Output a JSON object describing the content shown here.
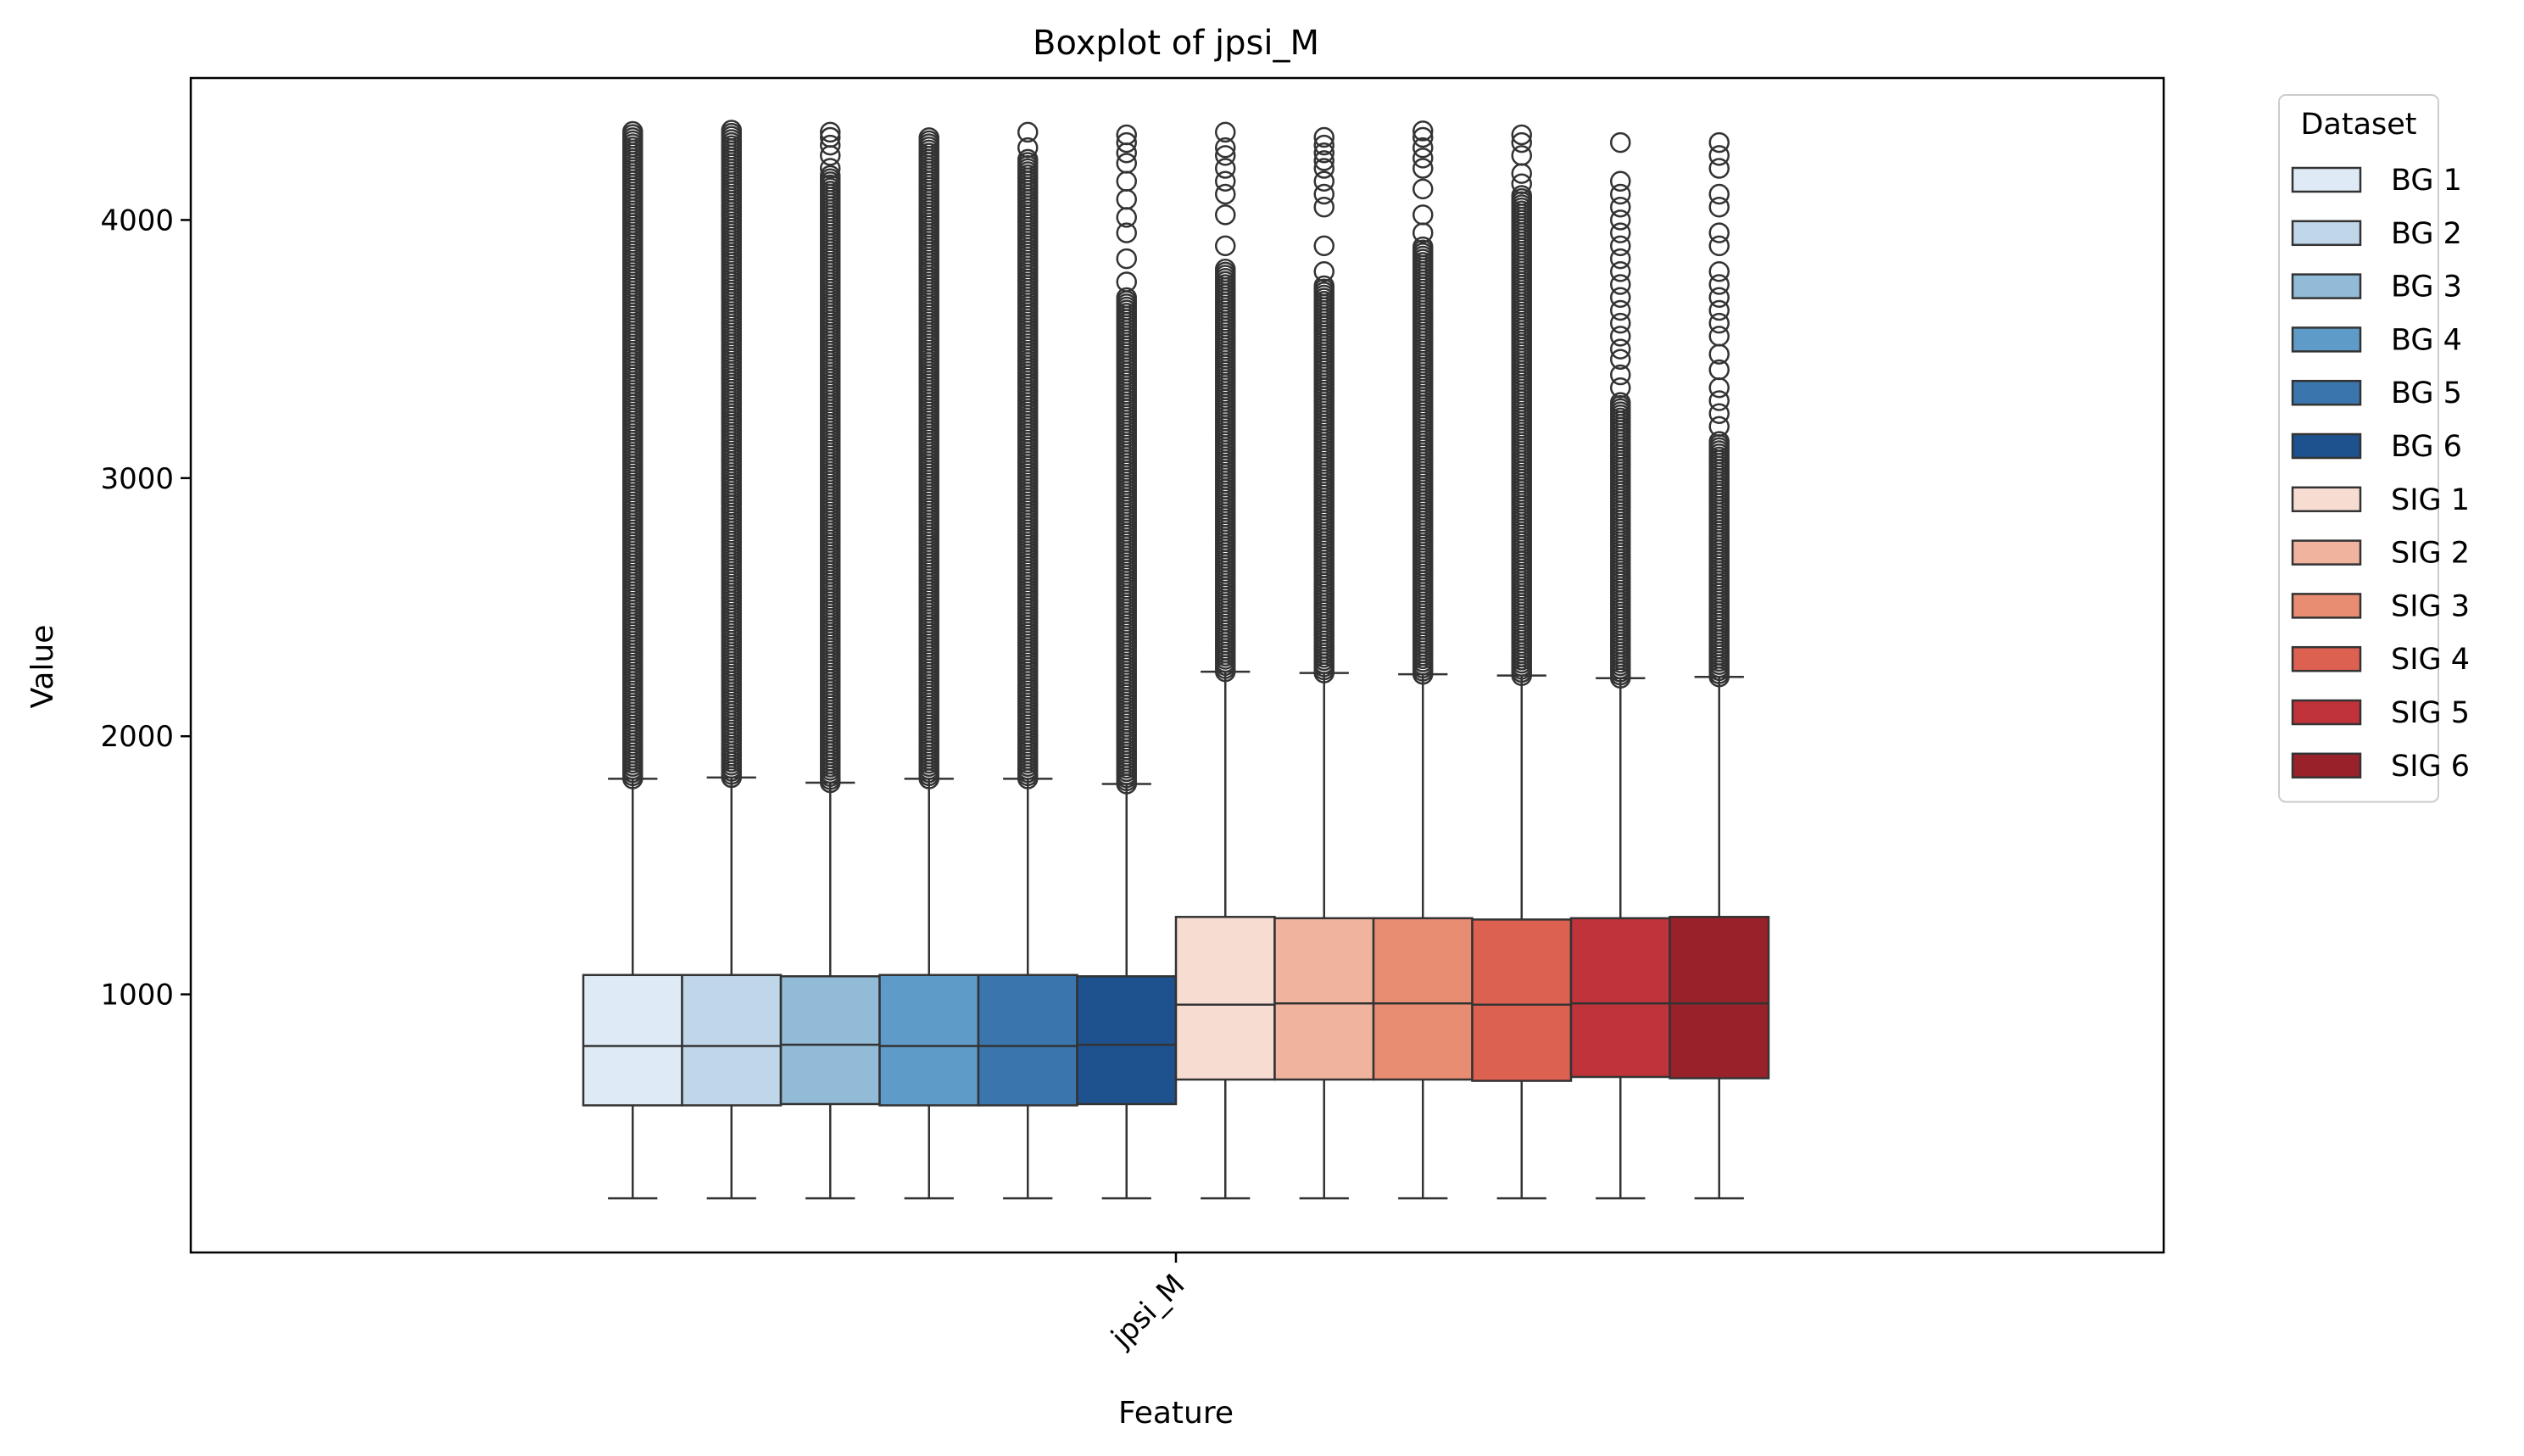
{
  "chart_data": {
    "type": "boxplot",
    "title": "Boxplot of jpsi_M",
    "xlabel": "Feature",
    "ylabel": "Value",
    "categories": [
      "jpsi_M"
    ],
    "ylim": [
      0,
      4550
    ],
    "yticks": [
      1000,
      2000,
      3000,
      4000
    ],
    "legend": {
      "title": "Dataset",
      "placement": "outside-top-right"
    },
    "series": [
      {
        "name": "BG 1",
        "color": "#deebf7",
        "whisker_low": 210,
        "q1": 570,
        "median": 800,
        "q3": 1075,
        "whisker_high": 1835,
        "outlier_min": 1835,
        "outlier_max": 4345,
        "sparse_outliers": []
      },
      {
        "name": "BG 2",
        "color": "#c0d6e9",
        "whisker_low": 210,
        "q1": 570,
        "median": 800,
        "q3": 1075,
        "whisker_high": 1840,
        "outlier_min": 1840,
        "outlier_max": 4350,
        "sparse_outliers": []
      },
      {
        "name": "BG 3",
        "color": "#91bbd6",
        "whisker_low": 210,
        "q1": 575,
        "median": 805,
        "q3": 1070,
        "whisker_high": 1820,
        "outlier_min": 1820,
        "outlier_max": 4180,
        "sparse_outliers": [
          4200,
          4250,
          4290,
          4320,
          4340
        ]
      },
      {
        "name": "BG 4",
        "color": "#5f9bc8",
        "whisker_low": 210,
        "q1": 570,
        "median": 800,
        "q3": 1075,
        "whisker_high": 1835,
        "outlier_min": 1835,
        "outlier_max": 4320,
        "sparse_outliers": []
      },
      {
        "name": "BG 5",
        "color": "#3a76ad",
        "whisker_low": 210,
        "q1": 570,
        "median": 800,
        "q3": 1075,
        "whisker_high": 1835,
        "outlier_min": 1835,
        "outlier_max": 4240,
        "sparse_outliers": [
          4280,
          4340
        ]
      },
      {
        "name": "BG 6",
        "color": "#1d528e",
        "whisker_low": 210,
        "q1": 575,
        "median": 805,
        "q3": 1070,
        "whisker_high": 1815,
        "outlier_min": 1815,
        "outlier_max": 3700,
        "sparse_outliers": [
          3760,
          3850,
          3950,
          4010,
          4080,
          4150,
          4220,
          4260,
          4300,
          4330
        ]
      },
      {
        "name": "SIG 1",
        "color": "#f7dcd2",
        "whisker_low": 210,
        "q1": 670,
        "median": 960,
        "q3": 1300,
        "whisker_high": 2250,
        "outlier_min": 2250,
        "outlier_max": 3820,
        "sparse_outliers": [
          3900,
          4020,
          4100,
          4150,
          4200,
          4250,
          4280,
          4340
        ]
      },
      {
        "name": "SIG 2",
        "color": "#f0b39e",
        "whisker_low": 210,
        "q1": 670,
        "median": 965,
        "q3": 1295,
        "whisker_high": 2245,
        "outlier_min": 2245,
        "outlier_max": 3750,
        "sparse_outliers": [
          3800,
          3900,
          4050,
          4100,
          4150,
          4200,
          4230,
          4260,
          4290,
          4320
        ]
      },
      {
        "name": "SIG 3",
        "color": "#e88c72",
        "whisker_low": 210,
        "q1": 670,
        "median": 965,
        "q3": 1295,
        "whisker_high": 2240,
        "outlier_min": 2240,
        "outlier_max": 3900,
        "sparse_outliers": [
          3950,
          4020,
          4120,
          4200,
          4240,
          4280,
          4320,
          4345
        ]
      },
      {
        "name": "SIG 4",
        "color": "#dd6150",
        "whisker_low": 210,
        "q1": 665,
        "median": 960,
        "q3": 1290,
        "whisker_high": 2235,
        "outlier_min": 2235,
        "outlier_max": 4100,
        "sparse_outliers": [
          4140,
          4180,
          4250,
          4300,
          4330
        ]
      },
      {
        "name": "SIG 5",
        "color": "#c1333a",
        "whisker_low": 210,
        "q1": 680,
        "median": 965,
        "q3": 1295,
        "whisker_high": 2225,
        "outlier_min": 2225,
        "outlier_max": 3300,
        "sparse_outliers": [
          3350,
          3400,
          3460,
          3500,
          3550,
          3600,
          3650,
          3700,
          3750,
          3800,
          3850,
          3900,
          3950,
          4000,
          4050,
          4100,
          4150,
          4300
        ]
      },
      {
        "name": "SIG 6",
        "color": "#99212a",
        "whisker_low": 210,
        "q1": 675,
        "median": 965,
        "q3": 1300,
        "whisker_high": 2230,
        "outlier_min": 2230,
        "outlier_max": 3150,
        "sparse_outliers": [
          3200,
          3250,
          3300,
          3350,
          3420,
          3480,
          3550,
          3600,
          3650,
          3700,
          3750,
          3800,
          3900,
          3950,
          4050,
          4100,
          4200,
          4250,
          4300
        ]
      }
    ]
  }
}
